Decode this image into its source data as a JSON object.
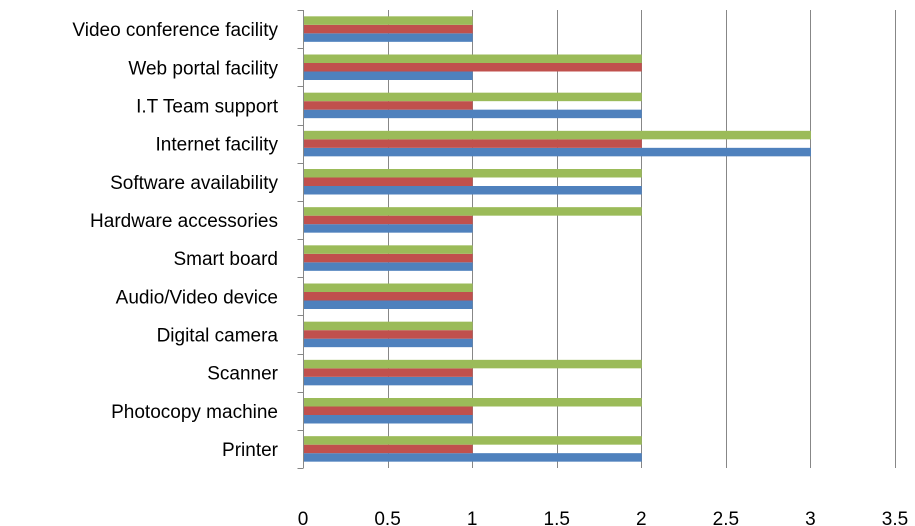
{
  "chart_data": {
    "type": "bar",
    "orientation": "horizontal",
    "categories": [
      "Printer",
      "Photocopy machine",
      "Scanner",
      "Digital camera",
      "Audio/Video device",
      "Smart board",
      "Hardware accessories",
      "Software availability",
      "Internet facility",
      "I.T Team support",
      "Web portal facility",
      "Video conference facility"
    ],
    "series": [
      {
        "color": "#4f81bd",
        "values": [
          2,
          1,
          1,
          1,
          1,
          1,
          1,
          2,
          3,
          2,
          1,
          1
        ]
      },
      {
        "color": "#c0504d",
        "values": [
          1,
          1,
          1,
          1,
          1,
          1,
          1,
          1,
          2,
          1,
          2,
          1
        ]
      },
      {
        "color": "#9bbb59",
        "values": [
          2,
          2,
          2,
          1,
          1,
          1,
          2,
          2,
          3,
          2,
          2,
          1
        ]
      }
    ],
    "xlim": [
      0,
      3.5
    ],
    "xticks": [
      "0",
      "0.5",
      "1",
      "1.5",
      "2",
      "2.5",
      "3",
      "3.5"
    ],
    "grid": true,
    "legend": "none"
  }
}
